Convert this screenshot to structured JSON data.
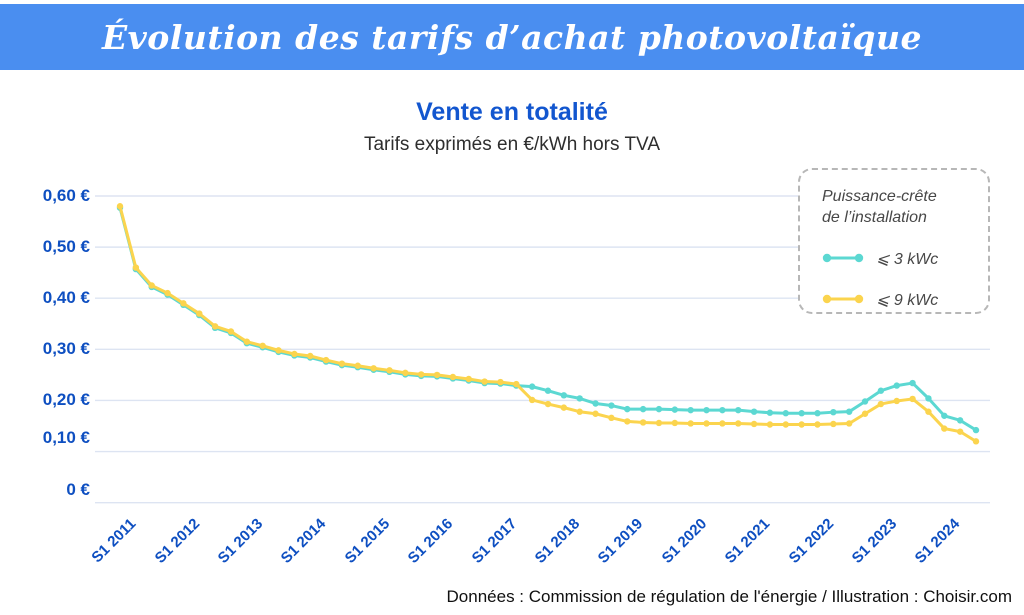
{
  "banner": {
    "title": "Évolution des tarifs d’achat photovoltaïque",
    "bg_color": "#4a8ef0"
  },
  "header": {
    "title": "Vente en totalité",
    "subtitle": "Tarifs exprimés en €/kWh hors TVA"
  },
  "legend": {
    "title_line1": "Puissance-crête",
    "title_line2": "de l’installation",
    "items": [
      {
        "label": "⩽ 3 kWc"
      },
      {
        "label": "⩽ 9 kWc"
      }
    ]
  },
  "footer": {
    "credit": "Données : Commission de régulation de l'énergie / Illustration : Choisir.com"
  },
  "colors": {
    "banner_bg": "#4a8ef0",
    "title_blue": "#1256cf",
    "axis_blue": "#0e4fc1",
    "gridline": "#dde4f2",
    "series_3kwc": "#5cd8d2",
    "series_9kwc": "#fbd44e"
  },
  "chart_data": {
    "type": "line",
    "title": "Vente en totalité",
    "subtitle": "Tarifs exprimés en €/kWh hors TVA",
    "unit": "€/kWh hors TVA",
    "x_description": "quarterly tariff periods from S1 2011 to S2 2024",
    "x_tick_labels": [
      "S1 2011",
      "S1 2012",
      "S1 2013",
      "S1 2014",
      "S1 2015",
      "S1 2016",
      "S1 2017",
      "S1 2018",
      "S1 2019",
      "S1 2020",
      "S1 2021",
      "S1 2022",
      "S1 2023",
      "S1 2024"
    ],
    "x_tick_indices": [
      0,
      4,
      8,
      12,
      16,
      20,
      24,
      28,
      32,
      36,
      40,
      44,
      48,
      52
    ],
    "y_ticks": [
      {
        "label": "0,60 €",
        "value": 0.6
      },
      {
        "label": "0,50 €",
        "value": 0.5
      },
      {
        "label": "0,40 €",
        "value": 0.4
      },
      {
        "label": "0,30 €",
        "value": 0.3
      },
      {
        "label": "0,20 €",
        "value": 0.2
      },
      {
        "label": "0,10 €",
        "value": 0.1
      },
      {
        "label": "0 €",
        "value": 0.0
      }
    ],
    "ylim": [
      0,
      0.6
    ],
    "grid": "horizontal",
    "legend_position": "top-right",
    "series": [
      {
        "name": "⩽ 3 kWc",
        "color": "#5cd8d2",
        "values": [
          0.58,
          0.46,
          0.425,
          0.41,
          0.39,
          0.37,
          0.345,
          0.335,
          0.315,
          0.307,
          0.298,
          0.291,
          0.287,
          0.279,
          0.272,
          0.268,
          0.263,
          0.259,
          0.254,
          0.251,
          0.25,
          0.246,
          0.242,
          0.237,
          0.236,
          0.232,
          0.23,
          0.222,
          0.213,
          0.207,
          0.197,
          0.193,
          0.186,
          0.186,
          0.186,
          0.185,
          0.184,
          0.184,
          0.184,
          0.184,
          0.181,
          0.179,
          0.178,
          0.178,
          0.178,
          0.18,
          0.181,
          0.201,
          0.222,
          0.232,
          0.237,
          0.207,
          0.173,
          0.164,
          0.145
        ]
      },
      {
        "name": "⩽ 9 kWc",
        "color": "#fbd44e",
        "values": [
          0.58,
          0.46,
          0.425,
          0.41,
          0.39,
          0.37,
          0.345,
          0.335,
          0.315,
          0.307,
          0.298,
          0.291,
          0.287,
          0.279,
          0.272,
          0.268,
          0.263,
          0.259,
          0.254,
          0.251,
          0.25,
          0.246,
          0.242,
          0.237,
          0.236,
          0.232,
          0.201,
          0.193,
          0.186,
          0.178,
          0.174,
          0.166,
          0.159,
          0.157,
          0.156,
          0.156,
          0.155,
          0.155,
          0.155,
          0.155,
          0.154,
          0.153,
          0.153,
          0.153,
          0.153,
          0.154,
          0.155,
          0.174,
          0.193,
          0.199,
          0.203,
          0.178,
          0.145,
          0.139,
          0.12
        ]
      }
    ]
  }
}
